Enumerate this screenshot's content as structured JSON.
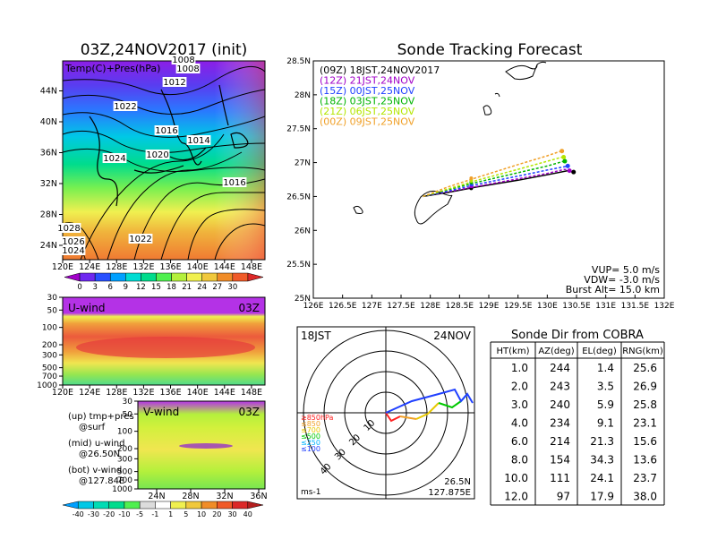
{
  "left_title": "03Z,24NOV2017 (init)",
  "map_panel": {
    "label": "Temp(C)+Pres(hPa)",
    "x_ticks": [
      "120E",
      "124E",
      "128E",
      "132E",
      "136E",
      "140E",
      "144E",
      "148E"
    ],
    "y_ticks": [
      "24N",
      "28N",
      "32N",
      "36N",
      "40N",
      "44N"
    ],
    "isobar_labels": [
      "1008",
      "1008",
      "1012",
      "1022",
      "1016",
      "1014",
      "1024",
      "1020",
      "1016",
      "1028",
      "1026",
      "1024",
      "1022"
    ],
    "colorbar_ticks": [
      "0",
      "3",
      "6",
      "9",
      "12",
      "15",
      "18",
      "21",
      "24",
      "27",
      "30"
    ],
    "colorbar_colors": [
      "#a000c8",
      "#6e28f0",
      "#2850ff",
      "#00a0ff",
      "#00dcd2",
      "#00dc8c",
      "#50f050",
      "#b4f03c",
      "#f0f050",
      "#f0c83c",
      "#f08c28",
      "#f05a28",
      "#dc2828"
    ]
  },
  "uwind_panel": {
    "label": "U-wind",
    "time": "03Z",
    "y_ticks": [
      "30",
      "50",
      "100",
      "200",
      "300",
      "500",
      "700",
      "1000"
    ],
    "x_ticks": [
      "120E",
      "124E",
      "128E",
      "132E",
      "136E",
      "140E",
      "144E",
      "148E"
    ]
  },
  "vwind_panel": {
    "label": "V-wind",
    "time": "03Z",
    "y_ticks": [
      "30",
      "50",
      "100",
      "200",
      "300",
      "500",
      "700",
      "1000"
    ],
    "x_ticks": [
      "24N",
      "28N",
      "32N",
      "36N"
    ]
  },
  "legend_notes": [
    {
      "line1": "(up) tmp+pres",
      "line2": "@surf"
    },
    {
      "line1": "(mid) u-wind",
      "line2": "@26.50N"
    },
    {
      "line1": "(bot) v-wind",
      "line2": "@127.84E"
    }
  ],
  "wind_colorbar_ticks": [
    "-40",
    "-30",
    "-20",
    "-10",
    "-5",
    "-1",
    "1",
    "5",
    "10",
    "20",
    "30",
    "40"
  ],
  "tracking": {
    "title": "Sonde Tracking Forecast",
    "x_ticks": [
      "126E",
      "126.5E",
      "127E",
      "127.5E",
      "128E",
      "128.5E",
      "129E",
      "129.5E",
      "130E",
      "130.5E",
      "131E",
      "131.5E",
      "132E"
    ],
    "y_ticks": [
      "25N",
      "25.5N",
      "26N",
      "26.5N",
      "27N",
      "27.5N",
      "28N",
      "28.5N"
    ],
    "legend": [
      {
        "text": "(09Z) 18JST,24NOV2017",
        "color": "#000000"
      },
      {
        "text": "(12Z) 21JST,24NOV",
        "color": "#a000c8"
      },
      {
        "text": "(15Z) 00JST,25NOV",
        "color": "#2040ff"
      },
      {
        "text": "(18Z) 03JST,25NOV",
        "color": "#00b400"
      },
      {
        "text": "(21Z) 06JST,25NOV",
        "color": "#b4e600"
      },
      {
        "text": "(00Z) 09JST,25NOV",
        "color": "#f0a028"
      }
    ],
    "params": [
      "VUP= 5.0 m/s",
      "VDW= -3.0 m/s",
      "Burst Alt= 15.0 km"
    ]
  },
  "polar": {
    "left_label": "18JST",
    "right_label": "24NOV",
    "ring_labels": [
      "10",
      "20",
      "30",
      "40"
    ],
    "unit": "ms-1",
    "lat": "26.5N",
    "lon": "127.875E",
    "level_legend": [
      {
        "text": "≥850hPa",
        "color": "#ff2020"
      },
      {
        "text": "≤850",
        "color": "#f0a028"
      },
      {
        "text": "≤700",
        "color": "#e8c800"
      },
      {
        "text": "≤500",
        "color": "#00c800"
      },
      {
        "text": "≤250",
        "color": "#00b4ff"
      },
      {
        "text": "≤100",
        "color": "#2040ff"
      }
    ]
  },
  "sonde_table": {
    "title": "Sonde Dir from COBRA",
    "headers": [
      "HT(km)",
      "AZ(deg)",
      "EL(deg)",
      "RNG(km)"
    ],
    "rows": [
      [
        "1.0",
        "244",
        "1.4",
        "25.6"
      ],
      [
        "2.0",
        "243",
        "3.5",
        "26.9"
      ],
      [
        "3.0",
        "240",
        "5.9",
        "25.8"
      ],
      [
        "4.0",
        "234",
        "9.1",
        "23.1"
      ],
      [
        "6.0",
        "214",
        "21.3",
        "15.6"
      ],
      [
        "8.0",
        "154",
        "34.3",
        "13.6"
      ],
      [
        "10.0",
        "111",
        "24.1",
        "23.7"
      ],
      [
        "12.0",
        "97",
        "17.9",
        "38.0"
      ]
    ]
  },
  "chart_data": [
    {
      "type": "line",
      "title": "Sonde Tracking Forecast",
      "xlim": [
        126,
        132
      ],
      "ylim": [
        25,
        28.5
      ],
      "series": [
        {
          "name": "(09Z) 18JST,24NOV2017",
          "x": [
            127.875,
            128.3,
            128.8,
            129.5,
            130.0,
            130.35,
            130.45
          ],
          "y": [
            26.5,
            26.56,
            26.64,
            26.74,
            26.82,
            26.88,
            26.86
          ]
        },
        {
          "name": "(12Z) 21JST,24NOV",
          "x": [
            127.875,
            128.3,
            128.8,
            129.5,
            130.0,
            130.3,
            130.38
          ],
          "y": [
            26.5,
            26.57,
            26.65,
            26.76,
            26.84,
            26.9,
            26.88
          ]
        },
        {
          "name": "(15Z) 00JST,25NOV",
          "x": [
            127.875,
            128.3,
            128.8,
            129.5,
            130.0,
            130.3,
            130.35
          ],
          "y": [
            26.5,
            26.58,
            26.68,
            26.8,
            26.89,
            26.94,
            26.95
          ]
        },
        {
          "name": "(18Z) 03JST,25NOV",
          "x": [
            127.875,
            128.3,
            128.8,
            129.5,
            130.0,
            130.28,
            130.3
          ],
          "y": [
            26.5,
            26.6,
            26.71,
            26.85,
            26.95,
            27.02,
            27.02
          ]
        },
        {
          "name": "(21Z) 06JST,25NOV",
          "x": [
            127.875,
            128.3,
            128.8,
            129.5,
            130.0,
            130.25,
            130.28
          ],
          "y": [
            26.5,
            26.61,
            26.74,
            26.9,
            27.02,
            27.08,
            27.08
          ]
        },
        {
          "name": "(00Z) 09JST,25NOV",
          "x": [
            127.875,
            128.3,
            128.8,
            129.5,
            130.0,
            130.2,
            130.25
          ],
          "y": [
            26.5,
            26.64,
            26.78,
            26.97,
            27.1,
            27.16,
            27.17
          ]
        }
      ]
    },
    {
      "type": "table",
      "title": "Sonde Dir from COBRA",
      "columns": [
        "HT(km)",
        "AZ(deg)",
        "EL(deg)",
        "RNG(km)"
      ],
      "rows": [
        [
          1.0,
          244,
          1.4,
          25.6
        ],
        [
          2.0,
          243,
          3.5,
          26.9
        ],
        [
          3.0,
          240,
          5.9,
          25.8
        ],
        [
          4.0,
          234,
          9.1,
          23.1
        ],
        [
          6.0,
          214,
          21.3,
          15.6
        ],
        [
          8.0,
          154,
          34.3,
          13.6
        ],
        [
          10.0,
          111,
          24.1,
          23.7
        ],
        [
          12.0,
          97,
          17.9,
          38.0
        ]
      ]
    }
  ]
}
